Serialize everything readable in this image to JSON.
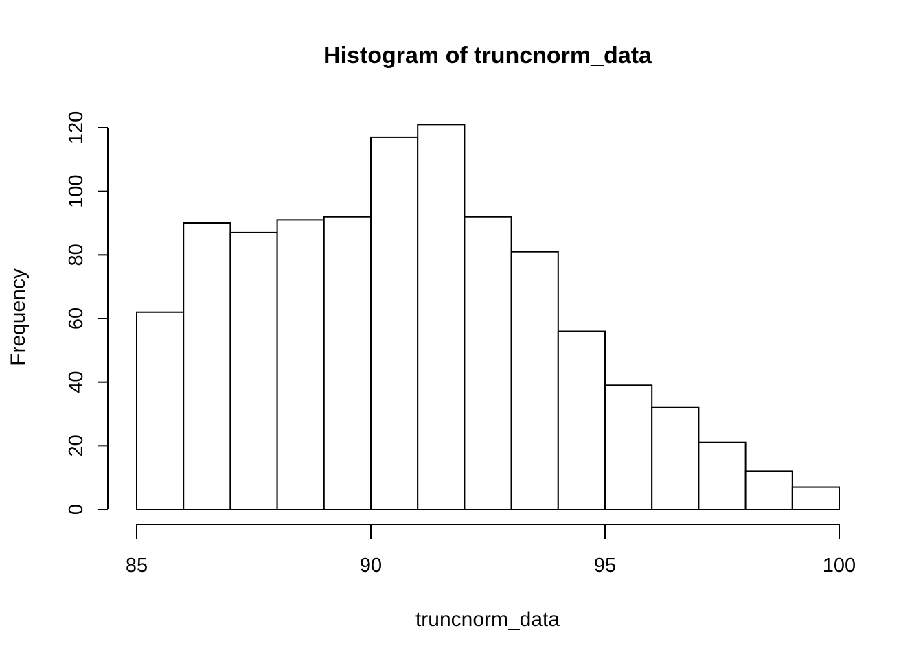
{
  "chart_data": {
    "type": "bar",
    "title": "Histogram of truncnorm_data",
    "xlabel": "truncnorm_data",
    "ylabel": "Frequency",
    "bin_edges": [
      85,
      86,
      87,
      88,
      89,
      90,
      91,
      92,
      93,
      94,
      95,
      96,
      97,
      98,
      99,
      100
    ],
    "values": [
      62,
      90,
      87,
      91,
      92,
      117,
      121,
      92,
      81,
      56,
      39,
      32,
      21,
      12,
      7
    ],
    "xlim": [
      85,
      100
    ],
    "ylim": [
      0,
      120
    ],
    "xticks": [
      85,
      90,
      95,
      100
    ],
    "yticks": [
      0,
      20,
      40,
      60,
      80,
      100,
      120
    ],
    "xtick_labels": [
      "85",
      "90",
      "95",
      "100"
    ],
    "ytick_labels": [
      "0",
      "20",
      "40",
      "60",
      "80",
      "100",
      "120"
    ],
    "grid": false,
    "legend": "none",
    "colors": {
      "bar_fill": "#ffffff",
      "bar_stroke": "#000000",
      "background": "#ffffff"
    }
  }
}
